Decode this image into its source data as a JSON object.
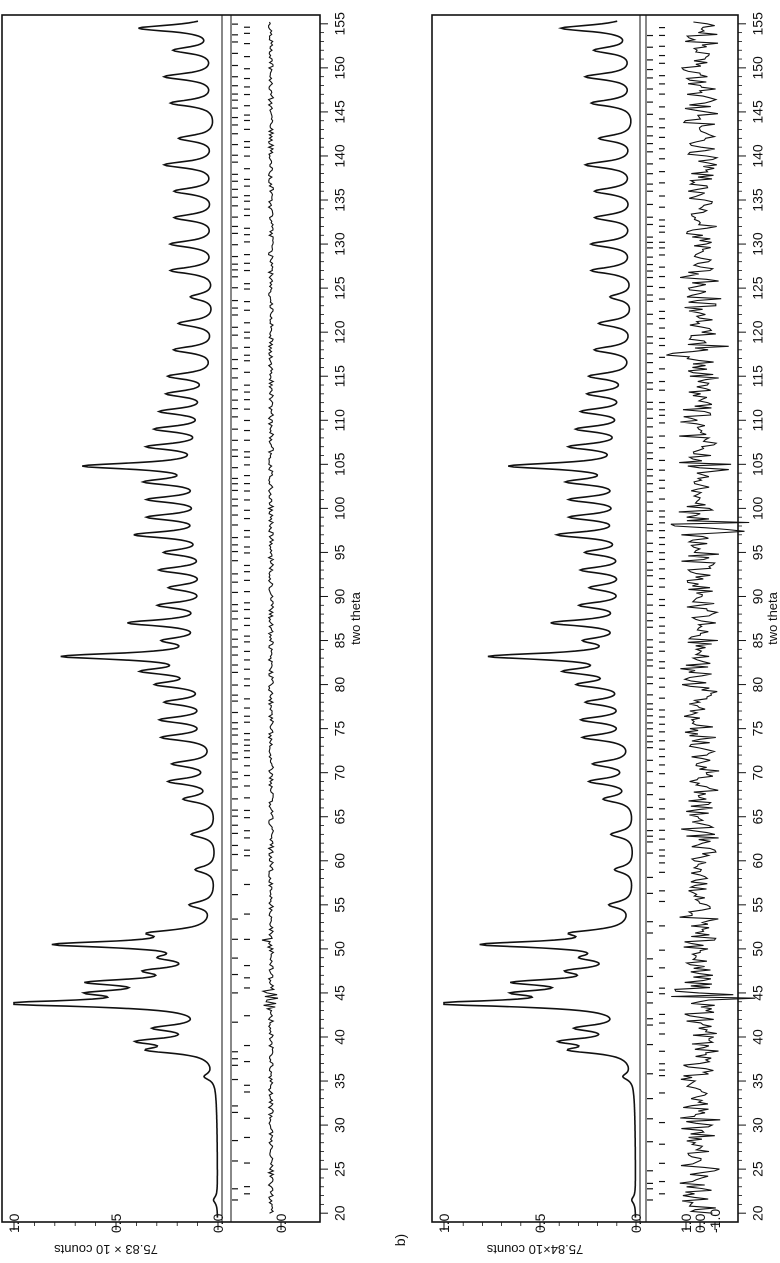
{
  "figure": {
    "caption_fragment": "b)"
  },
  "chart_data": [
    {
      "type": "line",
      "panel": "a",
      "xlabel": "two theta",
      "ylabel": "75.83 × 10 counts",
      "xlim": [
        19,
        156
      ],
      "x_ticks": [
        20,
        25,
        30,
        35,
        40,
        45,
        50,
        55,
        60,
        65,
        70,
        75,
        80,
        85,
        90,
        95,
        100,
        105,
        110,
        115,
        120,
        125,
        130,
        135,
        140,
        145,
        150,
        155
      ],
      "y_ticks_main": [
        "1.0",
        "0.5",
        "0.0"
      ],
      "y_ticks_diff": [
        "0.0"
      ],
      "main_ylim": [
        0,
        1.0
      ],
      "baseline": 0.08,
      "peaks": [
        [
          21.5,
          0.02
        ],
        [
          35.5,
          0.05
        ],
        [
          38.5,
          0.28
        ],
        [
          39.5,
          0.32
        ],
        [
          41,
          0.25
        ],
        [
          43.8,
          0.97
        ],
        [
          45,
          0.45
        ],
        [
          46.2,
          0.52
        ],
        [
          47.5,
          0.25
        ],
        [
          49,
          0.18
        ],
        [
          50.5,
          0.75
        ],
        [
          51.8,
          0.25
        ],
        [
          55,
          0.12
        ],
        [
          59,
          0.1
        ],
        [
          63,
          0.12
        ],
        [
          67,
          0.15
        ],
        [
          69,
          0.22
        ],
        [
          71,
          0.2
        ],
        [
          74,
          0.25
        ],
        [
          76,
          0.25
        ],
        [
          78,
          0.22
        ],
        [
          80,
          0.25
        ],
        [
          81.5,
          0.3
        ],
        [
          83.2,
          0.72
        ],
        [
          85,
          0.2
        ],
        [
          87,
          0.4
        ],
        [
          89,
          0.25
        ],
        [
          91,
          0.2
        ],
        [
          93,
          0.25
        ],
        [
          95,
          0.22
        ],
        [
          97,
          0.37
        ],
        [
          99,
          0.3
        ],
        [
          101,
          0.3
        ],
        [
          103,
          0.3
        ],
        [
          104.8,
          0.62
        ],
        [
          107,
          0.3
        ],
        [
          109,
          0.27
        ],
        [
          111,
          0.25
        ],
        [
          113,
          0.22
        ],
        [
          115,
          0.22
        ],
        [
          118,
          0.2
        ],
        [
          121,
          0.18
        ],
        [
          124,
          0.12
        ],
        [
          127,
          0.22
        ],
        [
          130,
          0.22
        ],
        [
          133,
          0.2
        ],
        [
          136,
          0.2
        ],
        [
          139,
          0.25
        ],
        [
          142,
          0.18
        ],
        [
          146,
          0.22
        ],
        [
          149,
          0.25
        ],
        [
          152,
          0.2
        ],
        [
          154.5,
          0.38
        ]
      ],
      "difference": {
        "label": "0.0",
        "noise": "low",
        "spikes_near": [
          43.8,
          45,
          50.5
        ]
      }
    },
    {
      "type": "line",
      "panel": "b",
      "xlabel": "two theta",
      "ylabel": "75.84×10 counts",
      "xlim": [
        19,
        156
      ],
      "x_ticks": [
        20,
        25,
        30,
        35,
        40,
        45,
        50,
        55,
        60,
        65,
        70,
        75,
        80,
        85,
        90,
        95,
        100,
        105,
        110,
        115,
        120,
        125,
        130,
        135,
        140,
        145,
        150,
        155
      ],
      "y_ticks_main": [
        "1.0",
        "0.5",
        "0.0"
      ],
      "y_ticks_diff": [
        "1.0",
        "0.0",
        "-1.0"
      ],
      "main_ylim": [
        0,
        1.0
      ],
      "baseline": 0.08,
      "peaks": [
        [
          21.5,
          0.02
        ],
        [
          35.5,
          0.05
        ],
        [
          38.5,
          0.28
        ],
        [
          39.5,
          0.32
        ],
        [
          41,
          0.25
        ],
        [
          43.8,
          0.97
        ],
        [
          45,
          0.45
        ],
        [
          46.2,
          0.52
        ],
        [
          47.5,
          0.25
        ],
        [
          49,
          0.18
        ],
        [
          50.5,
          0.75
        ],
        [
          51.8,
          0.25
        ],
        [
          55,
          0.12
        ],
        [
          59,
          0.1
        ],
        [
          63,
          0.12
        ],
        [
          67,
          0.15
        ],
        [
          69,
          0.22
        ],
        [
          71,
          0.2
        ],
        [
          74,
          0.25
        ],
        [
          76,
          0.25
        ],
        [
          78,
          0.22
        ],
        [
          80,
          0.25
        ],
        [
          81.5,
          0.3
        ],
        [
          83.2,
          0.72
        ],
        [
          85,
          0.2
        ],
        [
          87,
          0.4
        ],
        [
          89,
          0.25
        ],
        [
          91,
          0.2
        ],
        [
          93,
          0.25
        ],
        [
          95,
          0.22
        ],
        [
          97,
          0.37
        ],
        [
          99,
          0.3
        ],
        [
          101,
          0.3
        ],
        [
          103,
          0.3
        ],
        [
          104.8,
          0.62
        ],
        [
          107,
          0.3
        ],
        [
          109,
          0.27
        ],
        [
          111,
          0.25
        ],
        [
          113,
          0.22
        ],
        [
          115,
          0.22
        ],
        [
          118,
          0.2
        ],
        [
          121,
          0.18
        ],
        [
          124,
          0.12
        ],
        [
          127,
          0.22
        ],
        [
          130,
          0.22
        ],
        [
          133,
          0.2
        ],
        [
          136,
          0.2
        ],
        [
          139,
          0.25
        ],
        [
          142,
          0.18
        ],
        [
          146,
          0.22
        ],
        [
          149,
          0.25
        ],
        [
          152,
          0.2
        ],
        [
          154.5,
          0.38
        ]
      ],
      "difference": {
        "label": "0.0",
        "noise": "high",
        "spikes_near": [
          45,
          98,
          104.8,
          118
        ]
      }
    }
  ]
}
